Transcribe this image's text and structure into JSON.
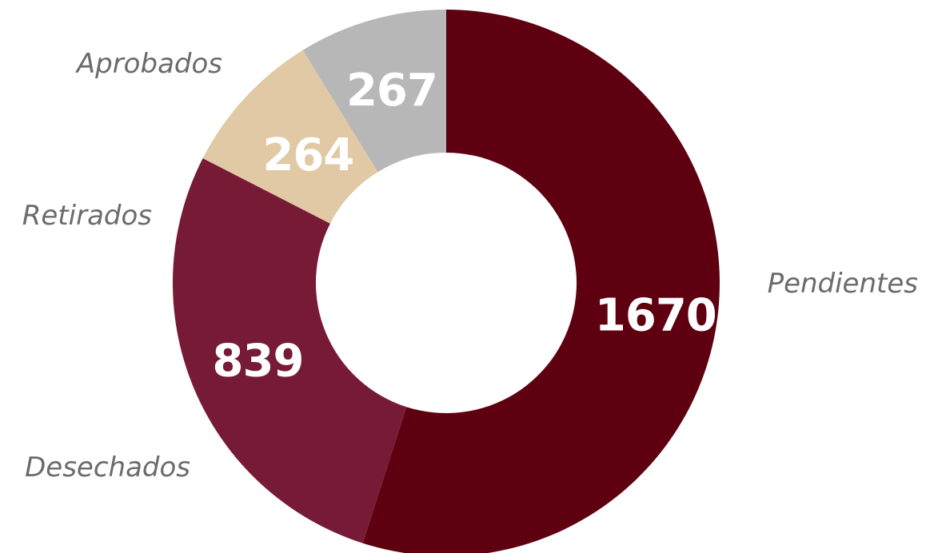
{
  "chart_data": {
    "type": "pie",
    "donut": true,
    "categories": [
      "Pendientes",
      "Desechados",
      "Retirados",
      "Aprobados"
    ],
    "values": [
      1670,
      839,
      264,
      267
    ],
    "colors": [
      "#5e0010",
      "#771a36",
      "#e0c9a4",
      "#b7b7b7"
    ],
    "value_labels": [
      "1670",
      "839",
      "264",
      "267"
    ],
    "start": "top",
    "direction": "clockwise"
  }
}
